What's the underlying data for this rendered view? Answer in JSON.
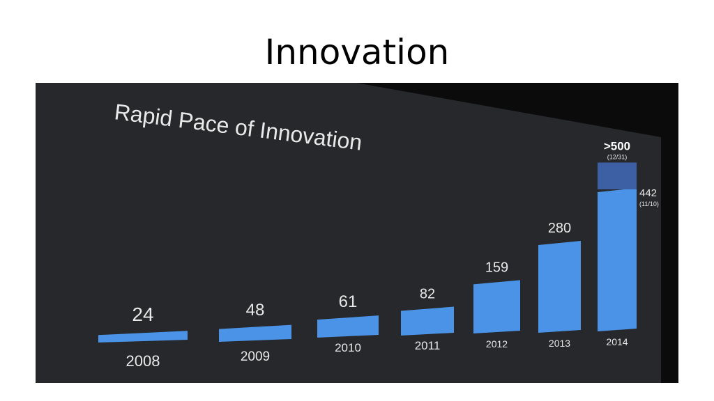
{
  "slide": {
    "title": "Innovation"
  },
  "chart_data": {
    "type": "bar",
    "title": "Rapid Pace of Innovation",
    "xlabel": "",
    "ylabel": "",
    "categories": [
      "2008",
      "2009",
      "2010",
      "2011",
      "2012",
      "2013",
      "2014"
    ],
    "values": [
      24,
      48,
      61,
      82,
      159,
      280,
      442
    ],
    "value_labels": [
      "24",
      "48",
      "61",
      "82",
      "159",
      "280",
      "442"
    ],
    "annotations": {
      "total_label": ">500",
      "total_value": 500,
      "total_date": "(12/31)",
      "partial_date": "(11/10)"
    },
    "colors": {
      "bar": "#4a93e6",
      "bar_extension": "#3d5fa3",
      "screen_background": "#26282c",
      "text": "#e9e9e9"
    }
  }
}
